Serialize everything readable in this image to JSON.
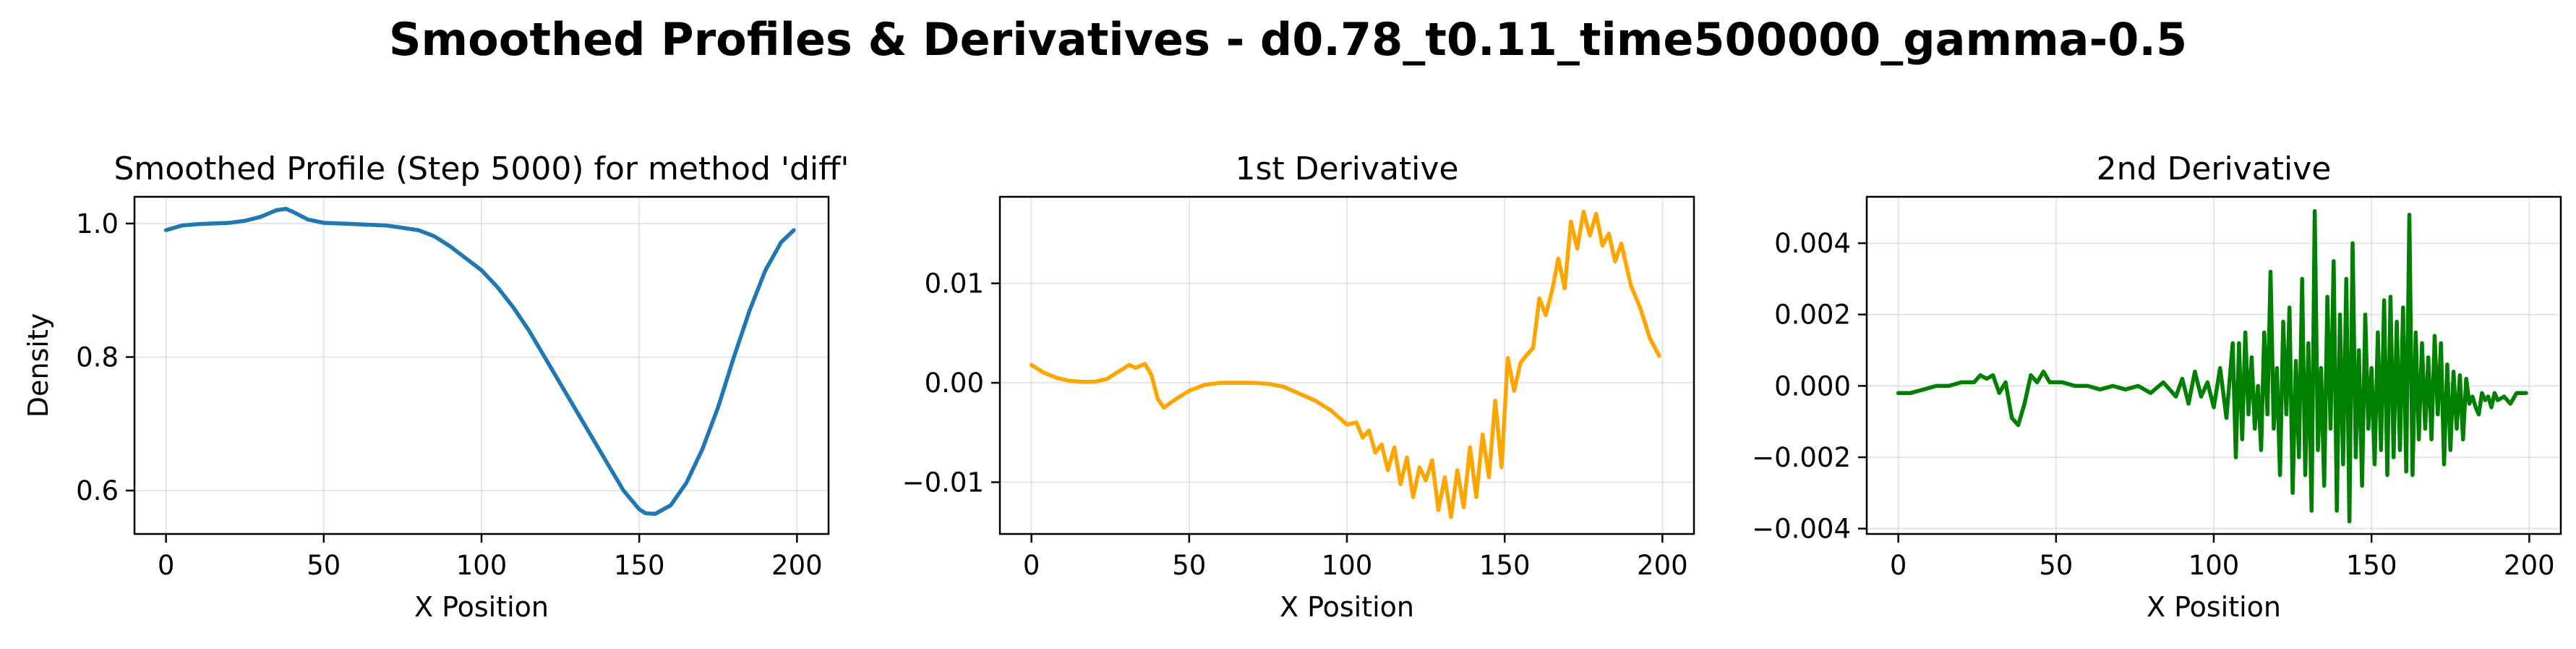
{
  "suptitle": "Smoothed Profiles & Derivatives - d0.78_t0.11_time500000_gamma-0.5",
  "chart_data": [
    {
      "type": "line",
      "title": "Smoothed Profile (Step 5000) for method 'diff'",
      "xlabel": "X Position",
      "ylabel": "Density",
      "xlim": [
        -10,
        210
      ],
      "ylim": [
        0.535,
        1.04
      ],
      "xticks": [
        0,
        50,
        100,
        150,
        200
      ],
      "yticks": [
        0.6,
        0.8,
        1.0
      ],
      "ytick_labels": [
        "0.6",
        "0.8",
        "1.0"
      ],
      "grid": true,
      "color": "#1f77b4",
      "x": [
        0,
        5,
        10,
        15,
        20,
        25,
        30,
        35,
        38,
        40,
        45,
        50,
        60,
        70,
        80,
        85,
        90,
        95,
        100,
        105,
        110,
        115,
        120,
        125,
        130,
        135,
        140,
        145,
        150,
        152,
        155,
        160,
        165,
        170,
        175,
        180,
        185,
        190,
        195,
        199
      ],
      "values": [
        0.99,
        0.997,
        0.999,
        1.0,
        1.001,
        1.004,
        1.01,
        1.02,
        1.022,
        1.018,
        1.006,
        1.001,
        0.999,
        0.997,
        0.99,
        0.981,
        0.966,
        0.948,
        0.93,
        0.905,
        0.875,
        0.84,
        0.8,
        0.76,
        0.72,
        0.68,
        0.64,
        0.6,
        0.572,
        0.566,
        0.565,
        0.578,
        0.612,
        0.662,
        0.725,
        0.8,
        0.87,
        0.93,
        0.972,
        0.99
      ]
    },
    {
      "type": "line",
      "title": "1st Derivative",
      "xlabel": "X Position",
      "ylabel": "",
      "xlim": [
        -10,
        210
      ],
      "ylim": [
        -0.0152,
        0.0187
      ],
      "xticks": [
        0,
        50,
        100,
        150,
        200
      ],
      "yticks": [
        -0.01,
        0.0,
        0.01
      ],
      "ytick_labels": [
        "−0.01",
        "0.00",
        "0.01"
      ],
      "grid": true,
      "color": "#ffa500",
      "x": [
        0,
        4,
        8,
        12,
        16,
        20,
        24,
        28,
        31,
        33,
        36,
        38,
        40,
        42,
        45,
        50,
        55,
        60,
        65,
        70,
        75,
        80,
        85,
        90,
        95,
        100,
        103,
        105,
        107,
        109,
        111,
        113,
        115,
        117,
        119,
        121,
        123,
        125,
        127,
        129,
        131,
        133,
        135,
        137,
        139,
        141,
        143,
        145,
        147,
        149,
        151,
        153,
        155,
        157,
        159,
        161,
        163,
        165,
        167,
        169,
        171,
        173,
        175,
        177,
        179,
        181,
        183,
        185,
        187,
        190,
        193,
        196,
        199
      ],
      "values": [
        0.0018,
        0.001,
        0.0005,
        0.0002,
        0.0001,
        0.0001,
        0.0004,
        0.0012,
        0.0018,
        0.0015,
        0.0019,
        0.0008,
        -0.0016,
        -0.0025,
        -0.0018,
        -0.0008,
        -0.0002,
        0.0,
        0.0,
        0.0,
        -0.0001,
        -0.0004,
        -0.0011,
        -0.0018,
        -0.0028,
        -0.0042,
        -0.004,
        -0.0055,
        -0.0048,
        -0.007,
        -0.0062,
        -0.0088,
        -0.0065,
        -0.0102,
        -0.0075,
        -0.0115,
        -0.0085,
        -0.0098,
        -0.0078,
        -0.0128,
        -0.0095,
        -0.0135,
        -0.0088,
        -0.0125,
        -0.0065,
        -0.0115,
        -0.0052,
        -0.0095,
        -0.0018,
        -0.0085,
        0.0025,
        -0.0008,
        0.002,
        0.0028,
        0.0035,
        0.0085,
        0.0068,
        0.0092,
        0.0125,
        0.0095,
        0.0162,
        0.0135,
        0.0172,
        0.0148,
        0.017,
        0.0138,
        0.015,
        0.0122,
        0.014,
        0.0098,
        0.0075,
        0.0045,
        0.0027
      ]
    },
    {
      "type": "line",
      "title": "2nd Derivative",
      "xlabel": "X Position",
      "ylabel": "",
      "xlim": [
        -10,
        210
      ],
      "ylim": [
        -0.00415,
        0.0053
      ],
      "xticks": [
        0,
        50,
        100,
        150,
        200
      ],
      "yticks": [
        -0.004,
        -0.002,
        0.0,
        0.002,
        0.004
      ],
      "ytick_labels": [
        "−0.004",
        "−0.002",
        "0.000",
        "0.002",
        "0.004"
      ],
      "grid": true,
      "color": "#008000",
      "x": [
        0,
        4,
        8,
        12,
        16,
        20,
        24,
        26,
        28,
        30,
        32,
        34,
        36,
        38,
        40,
        42,
        44,
        46,
        48,
        52,
        56,
        60,
        64,
        68,
        72,
        76,
        80,
        84,
        88,
        90,
        92,
        94,
        96,
        98,
        100,
        102,
        104,
        106,
        107,
        108,
        109,
        110,
        111,
        112,
        113,
        114,
        115,
        116,
        117,
        118,
        119,
        120,
        121,
        122,
        123,
        124,
        125,
        126,
        127,
        128,
        129,
        130,
        131,
        132,
        133,
        134,
        135,
        136,
        137,
        138,
        139,
        140,
        141,
        142,
        143,
        144,
        145,
        146,
        147,
        148,
        149,
        150,
        151,
        152,
        153,
        154,
        155,
        156,
        157,
        158,
        159,
        160,
        161,
        162,
        163,
        164,
        165,
        166,
        167,
        168,
        169,
        170,
        171,
        172,
        173,
        174,
        175,
        176,
        177,
        178,
        179,
        180,
        181,
        182,
        183,
        184,
        185,
        186,
        187,
        188,
        189,
        190,
        192,
        194,
        196,
        198,
        199
      ],
      "values": [
        -0.0002,
        -0.0002,
        -0.0001,
        0.0,
        0.0,
        0.0001,
        0.0001,
        0.0003,
        0.0002,
        0.0003,
        -0.0002,
        0.0001,
        -0.0009,
        -0.0011,
        -0.0005,
        0.0003,
        0.0001,
        0.0004,
        0.0001,
        0.0001,
        0.0,
        0.0,
        -0.0001,
        0.0,
        -0.0001,
        0.0,
        -0.0002,
        0.0001,
        -0.0003,
        0.0002,
        -0.0005,
        0.0004,
        -0.0003,
        0.0001,
        -0.0006,
        0.0005,
        -0.0009,
        0.0012,
        -0.002,
        0.0012,
        -0.0015,
        0.0015,
        -0.0008,
        0.0008,
        -0.0012,
        0.0,
        -0.0018,
        0.0015,
        -0.0008,
        0.0032,
        -0.0012,
        0.0005,
        -0.0025,
        0.0018,
        -0.0008,
        0.0022,
        -0.003,
        0.0007,
        -0.002,
        0.003,
        -0.0025,
        0.0012,
        -0.0035,
        0.0049,
        -0.0018,
        0.0005,
        -0.0028,
        0.0025,
        -0.0012,
        0.0035,
        -0.0035,
        0.002,
        -0.0022,
        0.003,
        -0.0038,
        0.004,
        -0.002,
        0.001,
        -0.0028,
        0.002,
        -0.0012,
        0.0005,
        -0.0022,
        0.0015,
        -0.0018,
        0.0024,
        -0.0025,
        0.0025,
        -0.002,
        0.0018,
        -0.0018,
        0.0022,
        -0.0024,
        0.0048,
        -0.0025,
        0.0015,
        -0.0015,
        0.0012,
        -0.0012,
        0.0008,
        -0.0015,
        0.0014,
        -0.0008,
        0.0012,
        -0.0022,
        0.0006,
        -0.0018,
        0.0004,
        -0.0012,
        0.0003,
        -0.0015,
        0.0002,
        -0.0005,
        -0.0003,
        -0.0006,
        -0.0008,
        -0.0002,
        -0.0004,
        -0.0003,
        -0.0006,
        -0.0002,
        -0.0004,
        -0.0003,
        -0.0005,
        -0.0002,
        -0.0002,
        -0.0002
      ]
    }
  ]
}
